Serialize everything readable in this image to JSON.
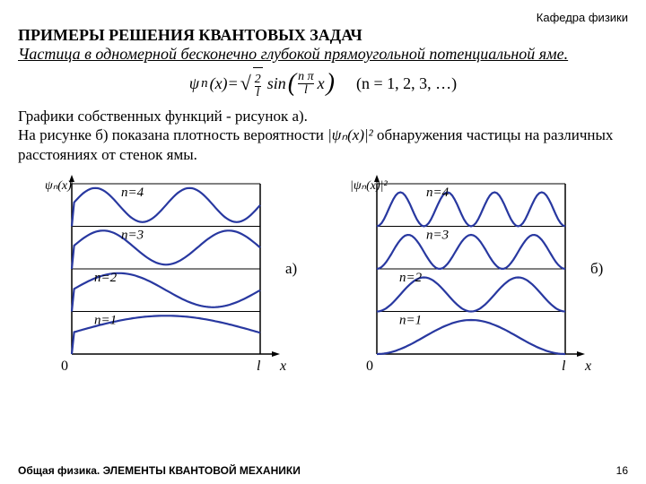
{
  "header_small": "Кафедра физики",
  "title": "ПРИМЕРЫ РЕШЕНИЯ КВАНТОВЫХ ЗАДАЧ",
  "subtitle": "Частица в одномерной бесконечно глубокой прямоугольной потенциальной яме.",
  "formula_lhs": "ψ",
  "formula_sub": "n",
  "formula_arg": "(x)=",
  "sqrt_num": "2",
  "sqrt_den": "l",
  "sin_txt": "sin",
  "frac2_num": "n π",
  "frac2_den": "l",
  "after_x": "x",
  "nlist": "(n = 1, 2, 3, …)",
  "para1": "Графики собственных функций - рисунок а).",
  "para2a": "На рисунке б) показана плотность вероятности ",
  "para2_formula": "|ψₙ(x)|²",
  "para2b": "обнаружения частицы на различных расстояниях от стенок ямы.",
  "chart_a": {
    "y_label": "ψₙ(x)",
    "n_labels": [
      "n=1",
      "n=2",
      "n=3",
      "n=4"
    ],
    "side_label": "а)",
    "x_labels": {
      "zero": "0",
      "l": "l",
      "x": "x"
    },
    "curve_color": "#2838a0",
    "axis_color": "#000000"
  },
  "chart_b": {
    "y_label": "|ψₙ(x)|²",
    "n_labels": [
      "n=1",
      "n=2",
      "n=3",
      "n=4"
    ],
    "side_label": "б)",
    "x_labels": {
      "zero": "0",
      "l": "l",
      "x": "x"
    },
    "curve_color": "#2838a0",
    "axis_color": "#000000"
  },
  "footer": "Общая физика. ЭЛЕМЕНТЫ КВАНТОВОЙ МЕХАНИКИ",
  "pagenum": "16"
}
